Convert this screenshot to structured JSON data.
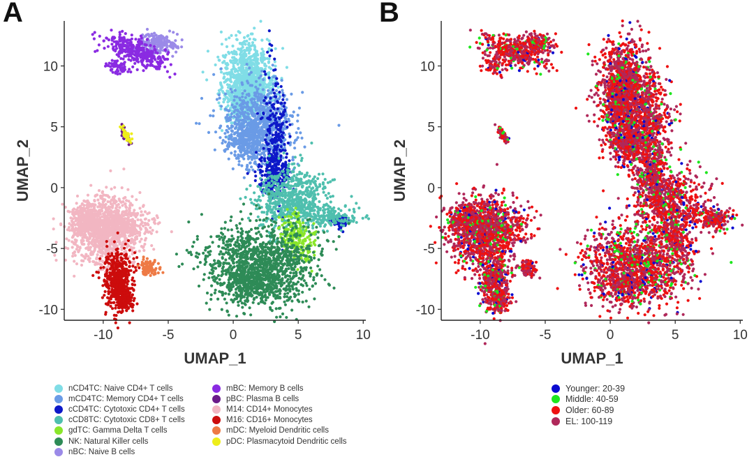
{
  "panels": [
    {
      "letter": "A",
      "chart_data": {
        "type": "scatter",
        "xlabel": "UMAP_1",
        "ylabel": "UMAP_2",
        "xlim": [
          -13,
          10.2
        ],
        "ylim": [
          -10.9,
          13.7
        ],
        "xticks": [
          -10,
          -5,
          0,
          5,
          10
        ],
        "yticks": [
          -10,
          -5,
          0,
          5,
          10
        ],
        "grid": false,
        "legend_position": "bottom",
        "series": [
          {
            "name": "nCD4TC: Naive CD4+ T cells",
            "color": "#80dde6"
          },
          {
            "name": "mCD4TC: Memory CD4+ T cells",
            "color": "#6a9be6"
          },
          {
            "name": "cCD4TC: Cytotoxic CD4+ T cells",
            "color": "#0d18c8"
          },
          {
            "name": "cCD8TC: Cytotoxic CD8+ T cells",
            "color": "#4fbfae"
          },
          {
            "name": "gdTC: Gamma Delta T cells",
            "color": "#8ae62a"
          },
          {
            "name": "NK: Natural Killer cells",
            "color": "#2e8b57"
          },
          {
            "name": "nBC: Naive B cells",
            "color": "#9b8ae8"
          },
          {
            "name": "mBC: Memory B cells",
            "color": "#8a2be2"
          },
          {
            "name": "pBC: Plasma B cells",
            "color": "#6a1b8a"
          },
          {
            "name": "M14: CD14+ Monocytes",
            "color": "#f2b6c2"
          },
          {
            "name": "M16: CD16+ Monocytes",
            "color": "#cc0c0c"
          },
          {
            "name": "mDC: Myeloid Dendritic cells",
            "color": "#ee7a45"
          },
          {
            "name": "pDC: Plasmacytoid Dendritic cells",
            "color": "#eeee1a"
          }
        ]
      }
    },
    {
      "letter": "B",
      "chart_data": {
        "type": "scatter",
        "xlabel": "UMAP_1",
        "ylabel": "UMAP_2",
        "xlim": [
          -13,
          10.2
        ],
        "ylim": [
          -10.9,
          13.7
        ],
        "xticks": [
          -10,
          -5,
          0,
          5,
          10
        ],
        "yticks": [
          -10,
          -5,
          0,
          5,
          10
        ],
        "grid": false,
        "legend_position": "bottom",
        "series": [
          {
            "name": "Younger: 20-39",
            "color": "#0a0ad0"
          },
          {
            "name": "Middle: 40-59",
            "color": "#1ee61e"
          },
          {
            "name": "Older: 60-89",
            "color": "#ee1111"
          },
          {
            "name": "EL: 100-119",
            "color": "#b0285a"
          }
        ]
      }
    }
  ]
}
